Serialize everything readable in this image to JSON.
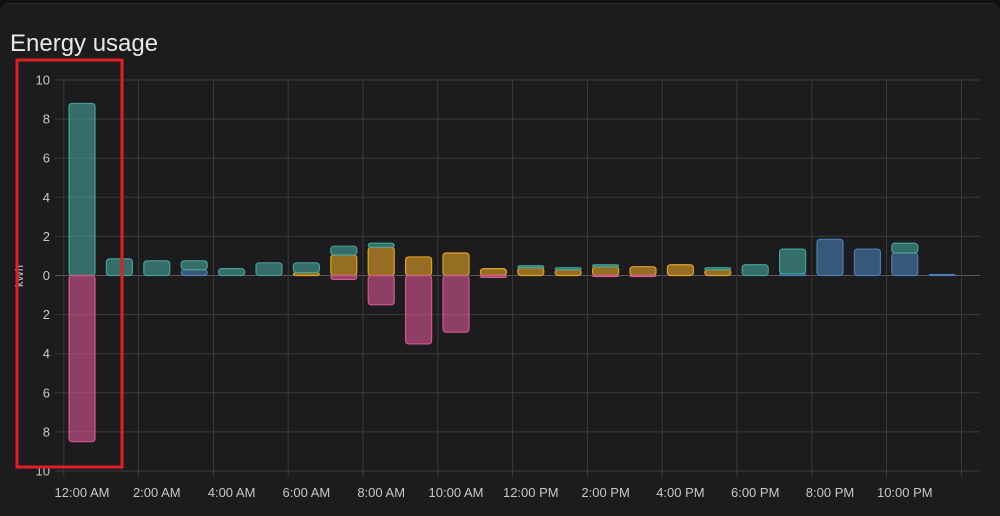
{
  "card": {
    "title": "Energy usage"
  },
  "colors": {
    "grid_solar": "#45a096",
    "battery_out": "#4a7eb3",
    "solar_direct": "#e2a126",
    "grid_return": "#d4578e",
    "highlight": "#e01e25"
  },
  "chart_data": {
    "type": "bar",
    "ylabel": "kWh",
    "ylim": [
      -10,
      10
    ],
    "y_ticks": [
      {
        "value": 10,
        "label": "10"
      },
      {
        "value": 8,
        "label": "8"
      },
      {
        "value": 6,
        "label": "6"
      },
      {
        "value": 4,
        "label": "4"
      },
      {
        "value": 2,
        "label": "2"
      },
      {
        "value": 0,
        "label": "0"
      },
      {
        "value": -2,
        "label": "2"
      },
      {
        "value": -4,
        "label": "4"
      },
      {
        "value": -6,
        "label": "6"
      },
      {
        "value": -8,
        "label": "8"
      },
      {
        "value": -10,
        "label": "10"
      }
    ],
    "x_tick_labels": [
      "12:00 AM",
      "2:00 AM",
      "4:00 AM",
      "6:00 AM",
      "8:00 AM",
      "10:00 AM",
      "12:00 PM",
      "2:00 PM",
      "4:00 PM",
      "6:00 PM",
      "8:00 PM",
      "10:00 PM"
    ],
    "hours": [
      0,
      1,
      2,
      3,
      4,
      5,
      6,
      7,
      8,
      9,
      10,
      11,
      12,
      13,
      14,
      15,
      16,
      17,
      18,
      19,
      20,
      21,
      22,
      23
    ],
    "series": [
      {
        "key": "grid_solar",
        "values": [
          8.8,
          0.85,
          0.75,
          0.45,
          0.35,
          0.65,
          0.5,
          0.45,
          0.2,
          0,
          0,
          0,
          0.1,
          0.1,
          0.1,
          0,
          0,
          0.1,
          0.55,
          1.25,
          0,
          0,
          0.5,
          0
        ]
      },
      {
        "key": "battery_out",
        "values": [
          0,
          0,
          0,
          0.3,
          0,
          0,
          0,
          0,
          0,
          0,
          0,
          0,
          0,
          0,
          0,
          0,
          0,
          0,
          0,
          0.1,
          1.85,
          1.35,
          1.15,
          0.05
        ]
      },
      {
        "key": "solar_direct",
        "values": [
          0,
          0,
          0,
          0,
          0,
          0,
          0.15,
          1.05,
          1.45,
          0.95,
          1.15,
          0.35,
          0.4,
          0.3,
          0.45,
          0.45,
          0.55,
          0.3,
          0,
          0,
          0,
          0,
          0,
          0
        ]
      },
      {
        "key": "grid_return",
        "values": [
          -8.5,
          0,
          0,
          0,
          0,
          0,
          0,
          -0.2,
          -1.5,
          -3.5,
          -2.9,
          -0.1,
          0,
          0,
          -0.05,
          -0.05,
          0,
          0,
          0,
          0,
          0,
          0,
          0,
          0
        ]
      }
    ]
  }
}
